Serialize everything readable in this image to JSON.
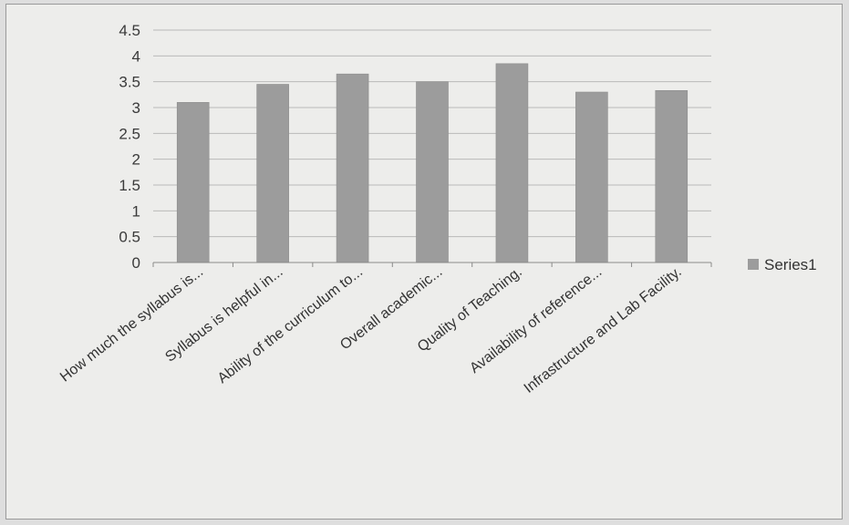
{
  "chart_data": {
    "type": "bar",
    "categories": [
      "How much the syllabus is...",
      "Syllabus is helpful in...",
      "Ability of the curriculum to...",
      "Overall academic...",
      "Quality of Teaching.",
      "Availability of reference...",
      "Infrastructure and Lab Facility."
    ],
    "series": [
      {
        "name": "Series1",
        "values": [
          3.1,
          3.45,
          3.65,
          3.5,
          3.85,
          3.3,
          3.33
        ]
      }
    ],
    "yticks": [
      "0",
      "0.5",
      "1",
      "1.5",
      "2",
      "2.5",
      "3",
      "3.5",
      "4",
      "4.5"
    ],
    "ylim": [
      0,
      4.5
    ],
    "grid": true,
    "legend": "right",
    "colors": {
      "bar": "#9c9c9c",
      "grid": "#b9b9b9",
      "axis": "#8a8a8a"
    }
  }
}
